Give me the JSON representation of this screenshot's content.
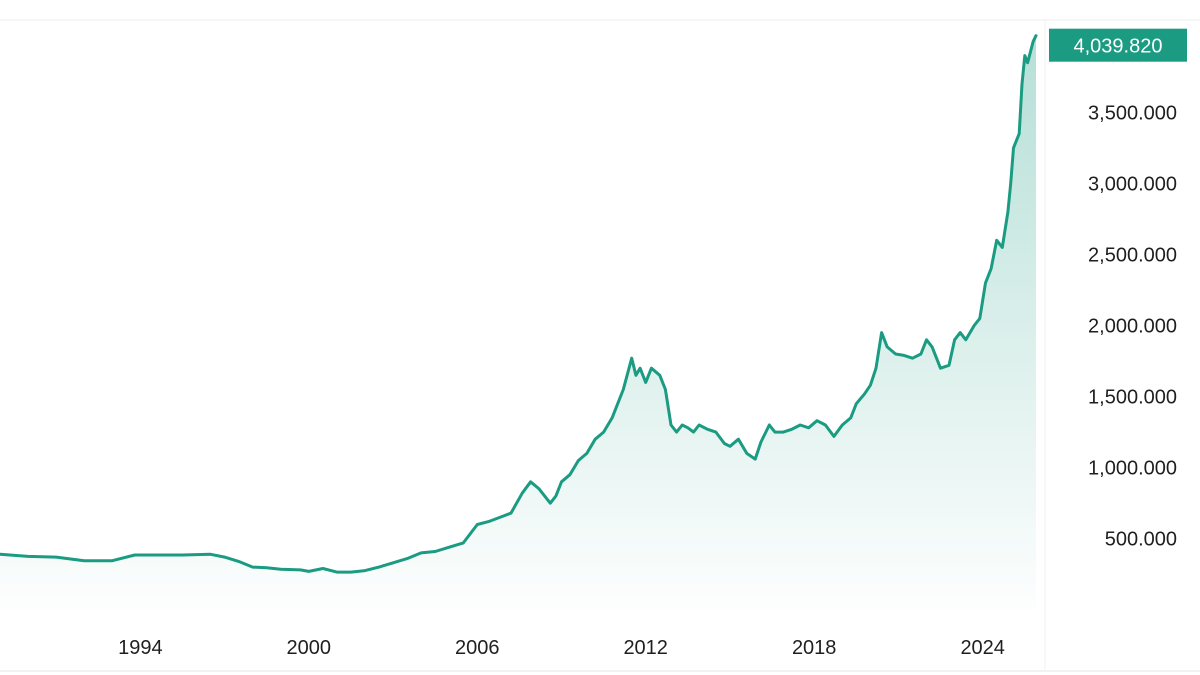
{
  "chart_data": {
    "type": "area",
    "title": "",
    "xlabel": "",
    "ylabel": "",
    "line_color": "#1a9b82",
    "fill_color": "#1a9b82",
    "grid": false,
    "x_tick_labels": [
      "1994",
      "2000",
      "2006",
      "2012",
      "2018",
      "2024"
    ],
    "y_tick_labels": [
      "500.000",
      "1,000.000",
      "1,500.000",
      "2,000.000",
      "2,500.000",
      "3,000.000",
      "3,500.000"
    ],
    "y_ticks": [
      500,
      1000,
      1500,
      2000,
      2500,
      3000,
      3500
    ],
    "last_value_label": "4,039.820",
    "last_value": 4039.82,
    "x_unit": "year",
    "xlim": [
      1989.0,
      2025.9
    ],
    "ylim": [
      -2,
      4080
    ],
    "series": [
      {
        "x": [
          1989.0,
          1990.0,
          1991.0,
          1992.0,
          1993.0,
          1993.8,
          1994.5,
          1995.5,
          1996.5,
          1997.0,
          1997.5,
          1998.0,
          1998.5,
          1999.0,
          1999.7,
          2000.0,
          2000.5,
          2001.0,
          2001.5,
          2002.0,
          2002.5,
          2003.0,
          2003.5,
          2004.0,
          2004.5,
          2005.0,
          2005.5,
          2006.0,
          2006.4,
          2006.8,
          2007.2,
          2007.6,
          2007.9,
          2008.2,
          2008.6,
          2008.8,
          2009.0,
          2009.3,
          2009.6,
          2009.9,
          2010.2,
          2010.5,
          2010.8,
          2011.0,
          2011.2,
          2011.5,
          2011.65,
          2011.8,
          2012.0,
          2012.2,
          2012.5,
          2012.7,
          2012.9,
          2013.1,
          2013.3,
          2013.5,
          2013.7,
          2013.9,
          2014.2,
          2014.5,
          2014.8,
          2015.0,
          2015.3,
          2015.6,
          2015.9,
          2016.1,
          2016.4,
          2016.6,
          2016.9,
          2017.2,
          2017.5,
          2017.8,
          2018.1,
          2018.4,
          2018.7,
          2019.0,
          2019.3,
          2019.5,
          2019.8,
          2020.0,
          2020.2,
          2020.4,
          2020.6,
          2020.9,
          2021.2,
          2021.5,
          2021.8,
          2022.0,
          2022.2,
          2022.5,
          2022.8,
          2023.0,
          2023.2,
          2023.4,
          2023.7,
          2023.9,
          2024.1,
          2024.3,
          2024.5,
          2024.7,
          2024.9,
          2025.0,
          2025.1,
          2025.2,
          2025.3,
          2025.4,
          2025.5,
          2025.6,
          2025.8,
          2025.9
        ],
        "values": [
          390,
          375,
          370,
          345,
          345,
          385,
          385,
          385,
          390,
          370,
          340,
          300,
          295,
          285,
          280,
          270,
          290,
          265,
          265,
          275,
          300,
          330,
          360,
          400,
          410,
          440,
          470,
          600,
          620,
          650,
          680,
          820,
          900,
          850,
          750,
          800,
          900,
          950,
          1050,
          1100,
          1200,
          1250,
          1350,
          1450,
          1550,
          1770,
          1650,
          1700,
          1600,
          1700,
          1650,
          1550,
          1300,
          1250,
          1300,
          1280,
          1250,
          1300,
          1270,
          1250,
          1170,
          1150,
          1200,
          1100,
          1060,
          1180,
          1300,
          1250,
          1250,
          1270,
          1300,
          1280,
          1330,
          1300,
          1220,
          1300,
          1350,
          1450,
          1520,
          1580,
          1700,
          1950,
          1850,
          1800,
          1790,
          1770,
          1800,
          1900,
          1850,
          1700,
          1720,
          1900,
          1950,
          1900,
          2000,
          2050,
          2300,
          2400,
          2600,
          2550,
          2800,
          3000,
          3250,
          3300,
          3350,
          3700,
          3900,
          3850,
          4000,
          4040
        ]
      }
    ]
  }
}
